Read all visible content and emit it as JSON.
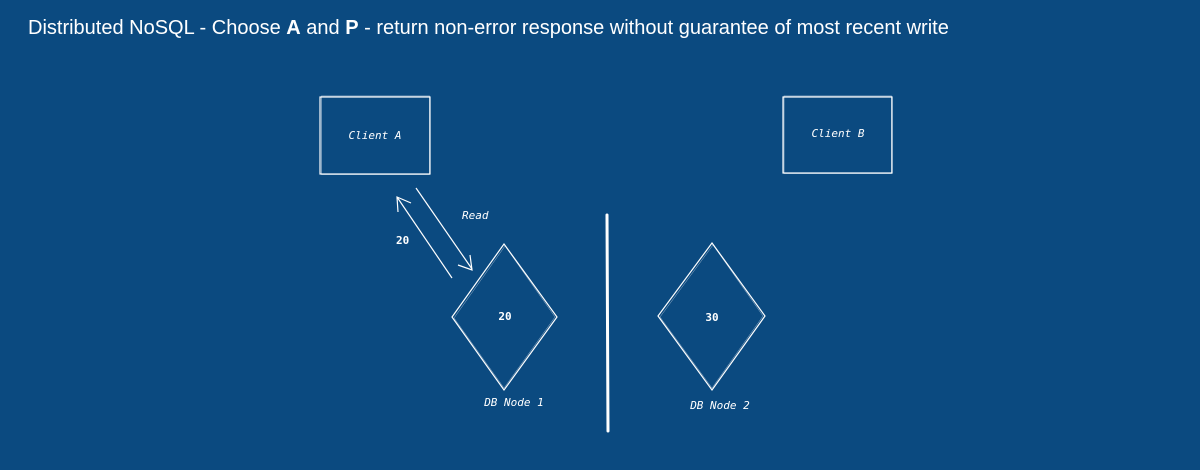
{
  "title": {
    "prefix": "Distributed NoSQL - Choose ",
    "a": "A",
    "and": " and ",
    "p": "P",
    "suffix": " - return non-error response without guarantee of most recent write"
  },
  "diagram": {
    "client_a": "Client A",
    "client_b": "Client B",
    "read_label": "Read",
    "response_value": "20",
    "node1_value": "20",
    "node2_value": "30",
    "node1_label": "DB Node 1",
    "node2_label": "DB Node 2"
  }
}
